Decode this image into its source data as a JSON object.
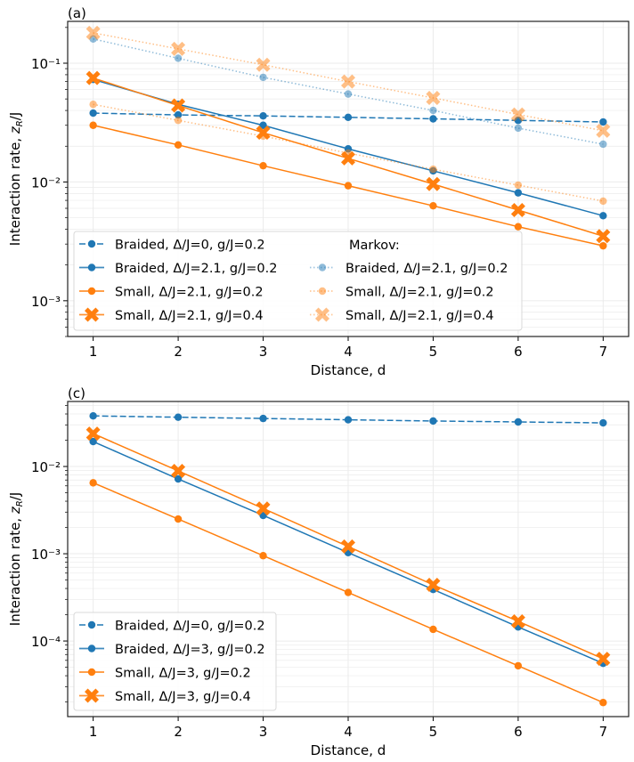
{
  "chart_data": [
    {
      "panel_label": "(a)",
      "type": "line",
      "yscale": "log",
      "xlabel": "Distance,  d",
      "ylabel": "Interaction rate, z_R/J",
      "xlim": [
        0.7,
        7.3
      ],
      "ylim": [
        0.0005,
        0.225
      ],
      "x": [
        1,
        2,
        3,
        4,
        5,
        6,
        7
      ],
      "xticks": [
        "1",
        "2",
        "3",
        "4",
        "5",
        "6",
        "7"
      ],
      "yticks": [
        {
          "value": 0.1,
          "label": "10⁻¹"
        },
        {
          "value": 0.01,
          "label": "10⁻²"
        },
        {
          "value": 0.001,
          "label": "10⁻³"
        }
      ],
      "grid": true,
      "legend_placement": "lower-left",
      "legend_columns": 2,
      "legend_subtitle": "Markov:",
      "series": [
        {
          "name": "Braided, Δ/J=0, g/J=0.2",
          "color": "#1f77b4",
          "style": "dashed",
          "marker": "circle",
          "alpha": 1.0,
          "values": [
            0.038,
            0.0367,
            0.036,
            0.035,
            0.034,
            0.033,
            0.032
          ]
        },
        {
          "name": "Braided, Δ/J=2.1, g/J=0.2",
          "color": "#1f77b4",
          "style": "solid",
          "marker": "circle",
          "alpha": 1.0,
          "values": [
            0.073,
            0.045,
            0.03,
            0.019,
            0.0124,
            0.0081,
            0.0052
          ]
        },
        {
          "name": "Small, Δ/J=2.1, g/J=0.2",
          "color": "#ff7f0e",
          "style": "solid",
          "marker": "circle",
          "alpha": 1.0,
          "values": [
            0.03,
            0.0205,
            0.0137,
            0.0093,
            0.0063,
            0.0042,
            0.0029
          ]
        },
        {
          "name": "Small, Δ/J=2.1, g/J=0.4",
          "color": "#ff7f0e",
          "style": "solid",
          "marker": "x",
          "alpha": 1.0,
          "values": [
            0.075,
            0.044,
            0.026,
            0.0158,
            0.0096,
            0.0058,
            0.0035
          ]
        },
        {
          "name": "Braided, Δ/J=2.1, g/J=0.2",
          "group": "Markov",
          "color": "#1f77b4",
          "style": "dotted",
          "marker": "circle",
          "alpha": 0.5,
          "values": [
            0.16,
            0.11,
            0.076,
            0.055,
            0.04,
            0.0284,
            0.0208
          ]
        },
        {
          "name": "Small, Δ/J=2.1, g/J=0.2",
          "group": "Markov",
          "color": "#ff7f0e",
          "style": "dotted",
          "marker": "circle",
          "alpha": 0.5,
          "values": [
            0.045,
            0.033,
            0.0243,
            0.0175,
            0.0128,
            0.0094,
            0.0069
          ]
        },
        {
          "name": "Small, Δ/J=2.1, g/J=0.4",
          "group": "Markov",
          "color": "#ff7f0e",
          "style": "dotted",
          "marker": "x",
          "alpha": 0.5,
          "values": [
            0.18,
            0.132,
            0.097,
            0.07,
            0.051,
            0.037,
            0.027
          ]
        }
      ]
    },
    {
      "panel_label": "(c)",
      "type": "line",
      "yscale": "log",
      "xlabel": "Distance,  d",
      "ylabel": "Interaction rate, z_R/J",
      "xlim": [
        0.7,
        7.3
      ],
      "ylim": [
        1.36e-05,
        0.0556
      ],
      "x": [
        1,
        2,
        3,
        4,
        5,
        6,
        7
      ],
      "xticks": [
        "1",
        "2",
        "3",
        "4",
        "5",
        "6",
        "7"
      ],
      "yticks": [
        {
          "value": 0.01,
          "label": "10⁻²"
        },
        {
          "value": 0.001,
          "label": "10⁻³"
        },
        {
          "value": 0.0001,
          "label": "10⁻⁴"
        }
      ],
      "grid": true,
      "legend_placement": "lower-left",
      "legend_columns": 1,
      "series": [
        {
          "name": "Braided, Δ/J=0, g/J=0.2",
          "color": "#1f77b4",
          "style": "dashed",
          "marker": "circle",
          "alpha": 1.0,
          "values": [
            0.038,
            0.0367,
            0.0355,
            0.0343,
            0.0332,
            0.0324,
            0.0316
          ]
        },
        {
          "name": "Braided, Δ/J=3, g/J=0.2",
          "color": "#1f77b4",
          "style": "solid",
          "marker": "circle",
          "alpha": 1.0,
          "values": [
            0.0193,
            0.0072,
            0.00275,
            0.00103,
            0.00039,
            0.000145,
            5.55e-05
          ]
        },
        {
          "name": "Small, Δ/J=3, g/J=0.2",
          "color": "#ff7f0e",
          "style": "solid",
          "marker": "circle",
          "alpha": 1.0,
          "values": [
            0.0065,
            0.0025,
            0.00095,
            0.00036,
            0.000136,
            5.2e-05,
            1.97e-05
          ]
        },
        {
          "name": "Small, Δ/J=3, g/J=0.4",
          "color": "#ff7f0e",
          "style": "solid",
          "marker": "x",
          "alpha": 1.0,
          "values": [
            0.0238,
            0.0089,
            0.0033,
            0.00121,
            0.00044,
            0.000168,
            6.25e-05
          ]
        }
      ]
    }
  ]
}
